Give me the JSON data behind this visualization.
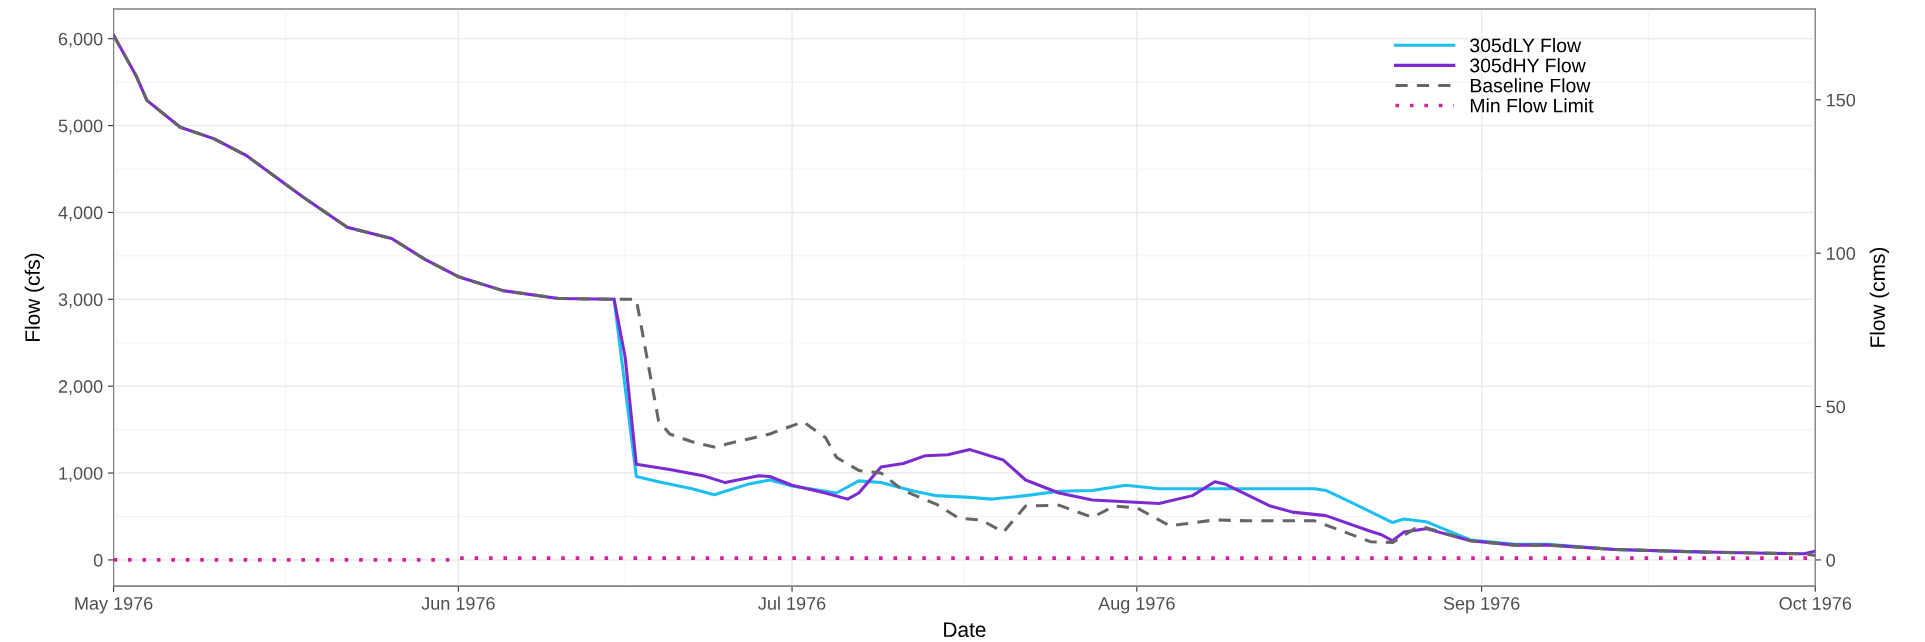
{
  "chart_data": {
    "type": "line",
    "xlabel": "Date",
    "ylabel": "Flow (cfs)",
    "y2label": "Flow (cms)",
    "xlim": [
      "1976-05-01",
      "1976-10-01"
    ],
    "xticks": [
      {
        "value": "1976-05-01",
        "label": "May 1976"
      },
      {
        "value": "1976-06-01",
        "label": "Jun 1976"
      },
      {
        "value": "1976-07-01",
        "label": "Jul 1976"
      },
      {
        "value": "1976-08-01",
        "label": "Aug 1976"
      },
      {
        "value": "1976-09-01",
        "label": "Sep 1976"
      },
      {
        "value": "1976-10-01",
        "label": "Oct 1976"
      }
    ],
    "ylim": [
      -302,
      6342
    ],
    "yticks": [
      {
        "value": 0,
        "label": "0"
      },
      {
        "value": 1000,
        "label": "1,000"
      },
      {
        "value": 2000,
        "label": "2,000"
      },
      {
        "value": 3000,
        "label": "3,000"
      },
      {
        "value": 4000,
        "label": "4,000"
      },
      {
        "value": 5000,
        "label": "5,000"
      },
      {
        "value": 6000,
        "label": "6,000"
      }
    ],
    "y2lim": [
      -8.55,
      179.6
    ],
    "y2ticks": [
      0,
      50,
      100,
      150
    ],
    "grid": true,
    "legend": "top right",
    "series": [
      {
        "name": "305dLY Flow",
        "color": "#1ebfef",
        "line_style": "solid",
        "x": [
          "1976-06-15",
          "1976-06-17",
          "1976-06-19",
          "1976-06-22",
          "1976-06-24",
          "1976-06-27",
          "1976-06-29",
          "1976-07-01",
          "1976-07-05",
          "1976-07-07",
          "1976-07-09",
          "1976-07-12",
          "1976-07-14",
          "1976-07-17",
          "1976-07-19",
          "1976-07-22",
          "1976-07-25",
          "1976-07-28",
          "1976-07-31",
          "1976-08-03",
          "1976-08-07",
          "1976-08-17",
          "1976-08-18",
          "1976-08-20",
          "1976-08-24",
          "1976-08-25",
          "1976-08-27",
          "1976-08-31",
          "1976-09-04",
          "1976-09-07",
          "1976-09-13",
          "1976-09-21"
        ],
        "values": [
          3000,
          960,
          900,
          820,
          750,
          870,
          920,
          850,
          770,
          910,
          890,
          790,
          740,
          720,
          700,
          740,
          790,
          800,
          860,
          820,
          820,
          820,
          800,
          680,
          430,
          470,
          440,
          230,
          180,
          180,
          120,
          90
        ]
      },
      {
        "name": "305dHY Flow",
        "color": "#7b2bd0",
        "line_style": "solid",
        "x": [
          "1976-05-01",
          "1976-05-03",
          "1976-05-04",
          "1976-05-07",
          "1976-05-10",
          "1976-05-13",
          "1976-05-18",
          "1976-05-22",
          "1976-05-26",
          "1976-05-29",
          "1976-06-01",
          "1976-06-05",
          "1976-06-10",
          "1976-06-15",
          "1976-06-16",
          "1976-06-17",
          "1976-06-20",
          "1976-06-23",
          "1976-06-25",
          "1976-06-28",
          "1976-06-29",
          "1976-07-01",
          "1976-07-04",
          "1976-07-06",
          "1976-07-07",
          "1976-07-09",
          "1976-07-11",
          "1976-07-13",
          "1976-07-15",
          "1976-07-17",
          "1976-07-20",
          "1976-07-22",
          "1976-07-25",
          "1976-07-28",
          "1976-07-31",
          "1976-08-03",
          "1976-08-06",
          "1976-08-08",
          "1976-08-09",
          "1976-08-13",
          "1976-08-15",
          "1976-08-18",
          "1976-08-22",
          "1976-08-23",
          "1976-08-24",
          "1976-08-25",
          "1976-08-27",
          "1976-08-31",
          "1976-09-04",
          "1976-09-07",
          "1976-09-13",
          "1976-09-21",
          "1976-09-30",
          "1976-10-01"
        ],
        "values": [
          6040,
          5580,
          5290,
          4980,
          4850,
          4650,
          4180,
          3830,
          3700,
          3460,
          3260,
          3100,
          3010,
          3000,
          2330,
          1100,
          1040,
          970,
          890,
          970,
          960,
          860,
          770,
          700,
          770,
          1070,
          1110,
          1200,
          1210,
          1270,
          1150,
          920,
          770,
          690,
          670,
          650,
          740,
          900,
          870,
          620,
          550,
          510,
          330,
          290,
          220,
          320,
          360,
          220,
          170,
          170,
          120,
          90,
          70,
          100
        ]
      },
      {
        "name": "Baseline Flow",
        "color": "#666666",
        "line_style": "dashed",
        "x": [
          "1976-05-01",
          "1976-05-03",
          "1976-05-04",
          "1976-05-07",
          "1976-05-10",
          "1976-05-13",
          "1976-05-18",
          "1976-05-22",
          "1976-05-26",
          "1976-05-29",
          "1976-06-01",
          "1976-06-05",
          "1976-06-10",
          "1976-06-15",
          "1976-06-17",
          "1976-06-19",
          "1976-06-20",
          "1976-06-22",
          "1976-06-24",
          "1976-06-27",
          "1976-06-29",
          "1976-07-02",
          "1976-07-04",
          "1976-07-05",
          "1976-07-07",
          "1976-07-09",
          "1976-07-11",
          "1976-07-14",
          "1976-07-16",
          "1976-07-18",
          "1976-07-20",
          "1976-07-22",
          "1976-07-25",
          "1976-07-28",
          "1976-07-30",
          "1976-08-01",
          "1976-08-04",
          "1976-08-05",
          "1976-08-08",
          "1976-08-11",
          "1976-08-17",
          "1976-08-22",
          "1976-08-24",
          "1976-08-26",
          "1976-08-27",
          "1976-08-31",
          "1976-09-04",
          "1976-09-07",
          "1976-09-13",
          "1976-09-21",
          "1976-09-30",
          "1976-10-01"
        ],
        "values": [
          6040,
          5580,
          5290,
          4980,
          4850,
          4650,
          4180,
          3830,
          3700,
          3460,
          3260,
          3100,
          3010,
          3000,
          3000,
          1600,
          1450,
          1360,
          1300,
          1390,
          1450,
          1590,
          1410,
          1180,
          1030,
          1000,
          800,
          640,
          480,
          460,
          320,
          620,
          630,
          490,
          620,
          600,
          390,
          410,
          460,
          450,
          450,
          210,
          200,
          360,
          370,
          220,
          170,
          170,
          120,
          90,
          70,
          50
        ]
      },
      {
        "name": "Min Flow Limit",
        "color": "#d4209a",
        "line_style": "dotted",
        "x": [
          "1976-05-01",
          "1976-05-31",
          "1976-06-01",
          "1976-10-01"
        ],
        "values": [
          0,
          0,
          20,
          20
        ]
      }
    ]
  }
}
